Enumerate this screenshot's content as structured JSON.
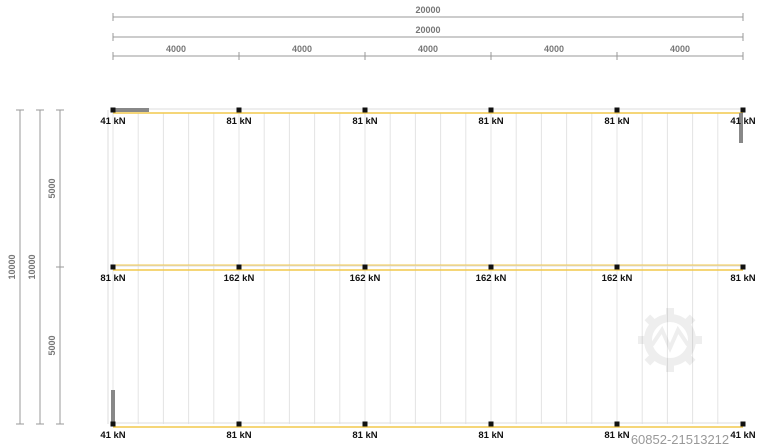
{
  "dimensions": {
    "top_total_1": "20000",
    "top_total_2": "20000",
    "top_spans": [
      "4000",
      "4000",
      "4000",
      "4000",
      "4000"
    ],
    "left_total_1": "10000",
    "left_total_2": "10000",
    "left_spans": [
      "5000",
      "5000"
    ]
  },
  "rows": [
    {
      "loads": [
        "41 kN",
        "81 kN",
        "81 kN",
        "81 kN",
        "81 kN",
        "41 kN"
      ]
    },
    {
      "loads": [
        "81 kN",
        "162 kN",
        "162 kN",
        "162 kN",
        "162 kN",
        "81 kN"
      ]
    },
    {
      "loads": [
        "41 kN",
        "81 kN",
        "81 kN",
        "81 kN",
        "81 kN",
        "41 kN"
      ]
    }
  ],
  "colors": {
    "beam": "#f2c94c",
    "dimension": "#999999",
    "node": "#111111",
    "bracing": "#888888"
  },
  "watermark": "60852-21513212"
}
